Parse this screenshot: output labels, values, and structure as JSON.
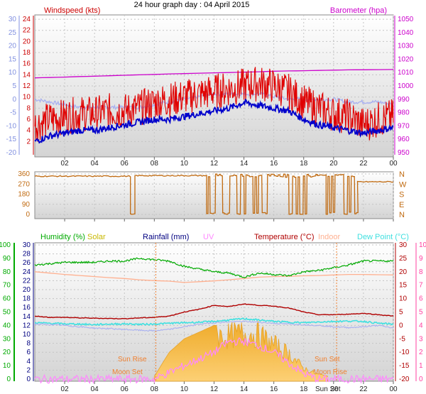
{
  "title": "24 hour graph day : 04 April 2015",
  "colors": {
    "bg_top": "#ffffff",
    "bg_bottom": "#d2d2d2",
    "frame": "#8a8a8a",
    "grid": "#c4c4c4",
    "wind": "#e00000",
    "gust_avg": "#0000cc",
    "barometer": "#cc00cc",
    "left_axis": "#8090e0",
    "direction": "#c06a10",
    "humidity": "#00aa00",
    "solar": "#c8b800",
    "rainfall": "#000080",
    "uv": "#ff88ff",
    "temperature": "#b00000",
    "indoor": "#ffb090",
    "dewpoint": "#40e0e0",
    "solar_fill": "#f3b030",
    "sun_moon": "#f08030",
    "uv_axis": "#ff40a0"
  },
  "x_ticks": [
    "02",
    "04",
    "06",
    "08",
    "10",
    "12",
    "14",
    "16",
    "18",
    "20",
    "22",
    "00"
  ],
  "panel_wind": {
    "label_left": "Windspeed (kts)",
    "label_right": "Barometer (hpa)",
    "left_outer_ticks": [
      "30",
      "25",
      "20",
      "15",
      "10",
      "5",
      "0",
      "-5",
      "-10",
      "-15",
      "-20"
    ],
    "left_inner_ticks": [
      "24",
      "22",
      "20",
      "18",
      "16",
      "14",
      "12",
      "10",
      "8",
      "6",
      "4",
      "2"
    ],
    "right_ticks": [
      "1050",
      "1040",
      "1030",
      "1020",
      "1010",
      "1000",
      "990",
      "980",
      "970",
      "960",
      "950"
    ]
  },
  "panel_dir": {
    "left_ticks": [
      "360",
      "270",
      "180",
      "90",
      "0"
    ],
    "right_labels": [
      "N",
      "W",
      "S",
      "E",
      "N"
    ]
  },
  "panel_bottom": {
    "labels": {
      "humidity": "Humidity (%)",
      "solar": "Solar",
      "rainfall": "Rainfall (mm)",
      "uv": "UV",
      "temperature": "Temperature (°C)",
      "indoor": "Indoor",
      "dewpoint": "Dew Point (°C)"
    },
    "hum_ticks": [
      "100",
      "90",
      "80",
      "70",
      "60",
      "50",
      "40",
      "30",
      "20",
      "10",
      "0"
    ],
    "rain_ticks": [
      "30",
      "28",
      "26",
      "24",
      "22",
      "20",
      "18",
      "16",
      "14",
      "12",
      "10",
      "8",
      "6",
      "4",
      "2",
      "0"
    ],
    "temp_ticks": [
      "30",
      "25",
      "20",
      "15",
      "10",
      "5",
      "0",
      "-5",
      "-10",
      "-15",
      "-20"
    ],
    "uv_ticks": [
      "10",
      "9",
      "8",
      "7",
      "6",
      "5",
      "4",
      "3",
      "2",
      "1",
      "0"
    ],
    "events": {
      "sunrise": "Sun Rise",
      "moonset": "Moon Set",
      "sunset": "Sun Set",
      "moonrise": "Moon Rise"
    },
    "bottom_axis_event": "Sun Set"
  },
  "chart_data": [
    {
      "type": "line",
      "title": "24 hour graph day : 04 April 2015",
      "x_hours": [
        0,
        1,
        2,
        3,
        4,
        5,
        6,
        7,
        8,
        9,
        10,
        11,
        12,
        13,
        14,
        15,
        16,
        17,
        18,
        19,
        20,
        21,
        22,
        23,
        24
      ],
      "series": [
        {
          "name": "Windspeed (kts)",
          "axis": "left_inner",
          "values": [
            5,
            6,
            6.5,
            7,
            7,
            7.5,
            7.5,
            8,
            9,
            9.5,
            10,
            10.5,
            11,
            11.5,
            12,
            12.5,
            12,
            11,
            9,
            8,
            7,
            6.5,
            5,
            6,
            6.5
          ]
        },
        {
          "name": "Windspeed (kts) average",
          "axis": "left_inner",
          "values": [
            2,
            3,
            3.5,
            4,
            4,
            4.5,
            5,
            5.5,
            6,
            6,
            6.5,
            7,
            7.5,
            8,
            9,
            8.5,
            8,
            7.5,
            6,
            5,
            4.5,
            4,
            3.5,
            4,
            4.5
          ]
        },
        {
          "name": "Barometer (hpa)",
          "axis": "right",
          "values": [
            1006,
            1006.3,
            1006.6,
            1007,
            1007.3,
            1007.6,
            1008,
            1008.3,
            1008.6,
            1009,
            1009.2,
            1009.5,
            1009.8,
            1010,
            1010.3,
            1010.6,
            1011,
            1011.2,
            1011.4,
            1011.6,
            1011.8,
            1012,
            1012.1,
            1012.2,
            1012.3
          ]
        },
        {
          "name": "Left axis series",
          "axis": "left_outer",
          "values": [
            0,
            -1,
            -2,
            -3,
            -3,
            -3,
            -3,
            -3,
            -2,
            -1,
            0,
            1,
            2,
            2,
            2,
            2,
            1,
            0,
            0,
            0,
            0,
            -1,
            -1,
            -1,
            -2
          ]
        }
      ],
      "ylim_left_inner": [
        0,
        26
      ],
      "ylim_left_outer": [
        -20,
        30
      ],
      "ylim_right": [
        950,
        1050
      ]
    },
    {
      "type": "line",
      "series": [
        {
          "name": "Wind direction",
          "axis": "degrees",
          "segments": [
            {
              "x0": 0.0,
              "x1": 6.4,
              "level": 340
            },
            {
              "x0": 6.4,
              "x1": 6.7,
              "level": 0
            },
            {
              "x0": 6.7,
              "x1": 11.5,
              "level": 345
            },
            {
              "x0": 11.5,
              "x1": 18.9,
              "level": "oscillating"
            },
            {
              "x0": 18.9,
              "x1": 19.5,
              "level": 350
            },
            {
              "x0": 19.5,
              "x1": 21.6,
              "level": "oscillating"
            },
            {
              "x0": 21.6,
              "x1": 24.0,
              "level": 290
            }
          ]
        }
      ],
      "ylim": [
        0,
        360
      ]
    },
    {
      "type": "area",
      "series": [
        {
          "name": "Humidity (%)",
          "axis": "humidity",
          "values": [
            85,
            86,
            87,
            87,
            87,
            88,
            88,
            90,
            89,
            88,
            84,
            82,
            80,
            79,
            76,
            79,
            78,
            77,
            80,
            81,
            83,
            85,
            88,
            88,
            88
          ]
        },
        {
          "name": "Temperature (°C)",
          "axis": "temperature",
          "values": [
            3.5,
            3,
            3,
            2.8,
            2.7,
            2.6,
            2.5,
            2.8,
            3,
            3.5,
            5,
            6,
            7.5,
            7,
            8,
            7.5,
            7.2,
            6.5,
            5,
            4,
            4,
            4.2,
            4.5,
            4,
            3.5
          ]
        },
        {
          "name": "Indoor",
          "axis": "temperature",
          "values": [
            20,
            19.5,
            19,
            18.6,
            18.2,
            17.8,
            17.5,
            17,
            16.7,
            16.5,
            16,
            16.3,
            16.6,
            17,
            17.5,
            18,
            18.2,
            18.3,
            18.5,
            18.6,
            18.8,
            19,
            19,
            18.9,
            18.8
          ]
        },
        {
          "name": "Dew Point (°C)",
          "axis": "temperature",
          "values": [
            1,
            0.8,
            0.6,
            0.5,
            0.3,
            0.5,
            0.6,
            0.4,
            0.5,
            0.8,
            1,
            1.2,
            1.5,
            2,
            2.5,
            2,
            1.5,
            1.2,
            1,
            1.3,
            1.5,
            1.6,
            1.5,
            0.8,
            0.5
          ]
        },
        {
          "name": "Solar",
          "axis": "uv",
          "values": [
            0,
            0,
            0,
            0,
            0,
            0,
            0,
            0,
            0.2,
            2,
            3,
            3.5,
            4,
            4,
            4.3,
            4.1,
            3.2,
            2.4,
            1,
            0.4,
            0.1,
            0,
            0,
            0,
            0
          ]
        },
        {
          "name": "UV",
          "axis": "uv",
          "values": [
            0,
            0,
            0,
            0,
            0,
            0,
            0,
            0,
            0,
            0.5,
            1,
            1.5,
            2,
            2.8,
            2.8,
            2.5,
            2,
            1.2,
            0.4,
            0,
            0,
            0,
            0,
            0,
            0
          ]
        }
      ],
      "ylim_humidity": [
        0,
        100
      ],
      "ylim_rainfall": [
        0,
        30
      ],
      "ylim_temperature": [
        -20,
        30
      ],
      "ylim_uv": [
        0,
        10
      ]
    }
  ]
}
